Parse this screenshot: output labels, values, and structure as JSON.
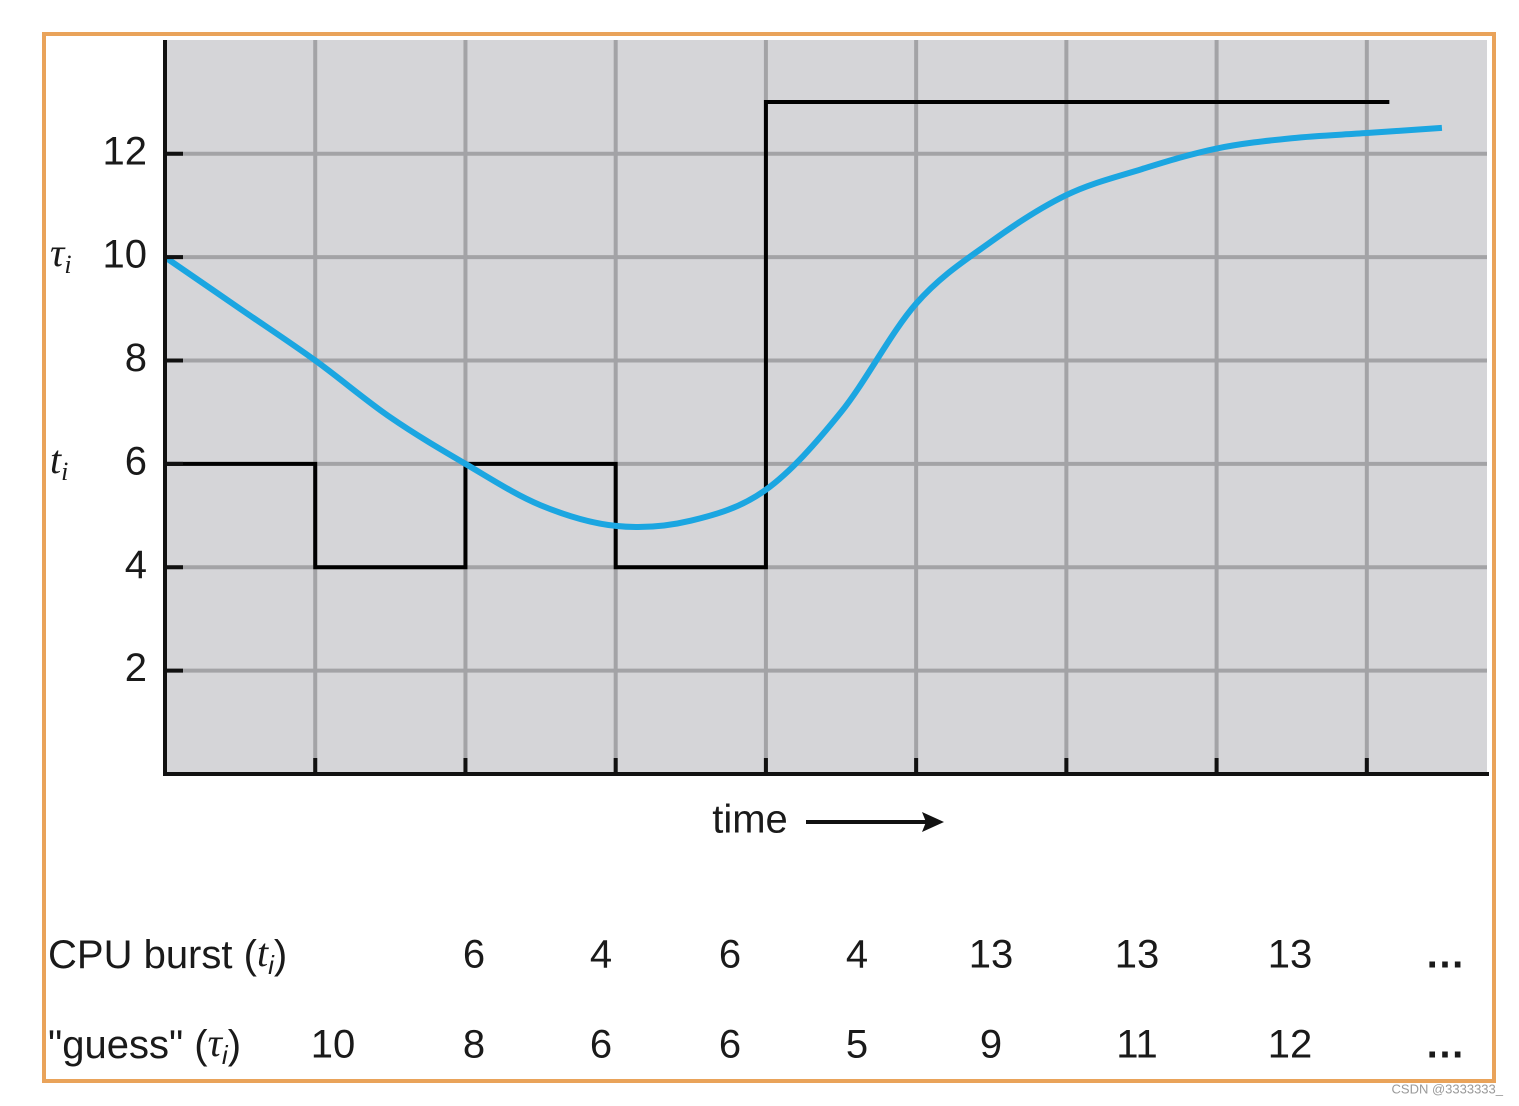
{
  "chart_data": {
    "type": "line",
    "xlim": [
      0,
      8.8
    ],
    "ylim": [
      0,
      14.2
    ],
    "xticks": [
      1,
      2,
      3,
      4,
      5,
      6,
      7,
      8
    ],
    "yticks": [
      2,
      4,
      6,
      8,
      10,
      12
    ],
    "grid": true,
    "x_label": "time",
    "series": [
      {
        "color": "#000000",
        "smooth": false,
        "x": [
          0,
          1,
          1,
          2,
          2,
          3,
          3,
          4,
          4,
          8.15
        ],
        "values": [
          6,
          6,
          4,
          4,
          6,
          6,
          4,
          4,
          13,
          13
        ]
      },
      {
        "color": "#1ba6e1",
        "smooth": true,
        "x": [
          0,
          0.5,
          1,
          1.5,
          2,
          2.5,
          3,
          3.5,
          4,
          4.5,
          5,
          5.5,
          6,
          6.5,
          7,
          7.5,
          8,
          8.5
        ],
        "values": [
          10,
          9.0,
          8.0,
          6.9,
          6.0,
          5.2,
          4.8,
          4.9,
          5.5,
          7.0,
          9.1,
          10.3,
          11.2,
          11.7,
          12.1,
          12.3,
          12.4,
          12.5
        ]
      }
    ],
    "y_annotations": [
      {
        "symbol": "τ",
        "sub": "i",
        "y": 10
      },
      {
        "symbol": "t",
        "sub": "i",
        "y": 6
      }
    ],
    "table": {
      "rows": [
        {
          "before": "CPU burst (",
          "symbol": "t",
          "sub": "i",
          "after": ")",
          "cells": [
            null,
            "6",
            "4",
            "6",
            "4",
            "13",
            "13",
            "13",
            "…"
          ]
        },
        {
          "before": "\"guess\" (",
          "symbol": "τ",
          "sub": "i",
          "after": ")",
          "cells": [
            "10",
            "8",
            "6",
            "6",
            "5",
            "9",
            "11",
            "12",
            "…"
          ]
        }
      ]
    }
  },
  "watermark": "CSDN @3333333_"
}
